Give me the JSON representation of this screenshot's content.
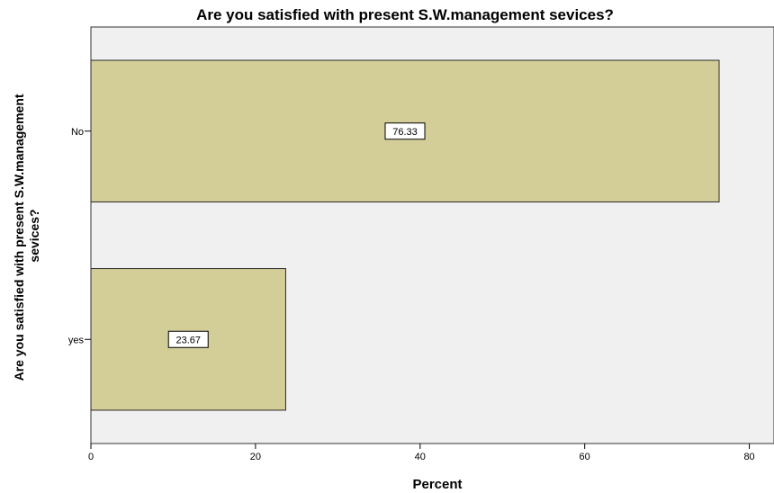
{
  "chart_data": {
    "type": "bar",
    "orientation": "horizontal",
    "title": "Are you satisfied with present S.W.management sevices?",
    "xlabel": "Percent",
    "ylabel_lines": [
      "Are you satisfied with present S.W.management",
      "sevices?"
    ],
    "categories": [
      "No",
      "yes"
    ],
    "values": [
      76.33,
      23.67
    ],
    "data_labels": [
      "76.33",
      "23.67"
    ],
    "xlim": [
      0,
      83
    ],
    "xticks": [
      0,
      20,
      40,
      60,
      80
    ],
    "grid": false,
    "legend": "none",
    "colors": {
      "bar_fill": "#d3cd98",
      "bar_stroke": "#2b2b2b",
      "plot_bg": "#f0f0f0",
      "label_box": "#ffffff"
    }
  }
}
